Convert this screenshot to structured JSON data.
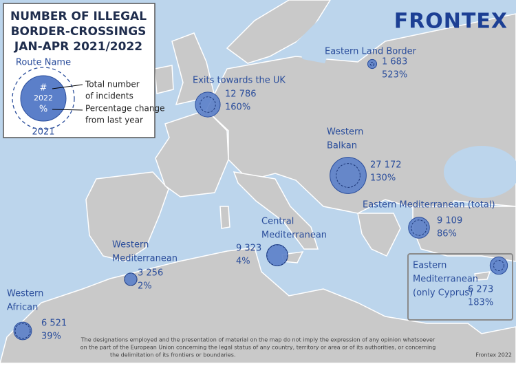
{
  "title": [
    "NUMBER OF ILLEGAL",
    "BORDER-CROSSINGS",
    "JAN-APR 2021/2022"
  ],
  "logo": "FRONTEX",
  "legend": {
    "route_name": "Route Name",
    "count_symbol": "#",
    "year_current": "2022",
    "change_symbol": "%",
    "year_previous": "2021",
    "count_text": [
      "Total number",
      "of incidents"
    ],
    "change_text": [
      "Percentage change",
      "from last year"
    ]
  },
  "routes": [
    {
      "name": [
        "Eastern Land Border"
      ],
      "value": 1683,
      "value_label": "1 683",
      "change": 523,
      "change_label": "523%"
    },
    {
      "name": [
        "Exits towards the UK"
      ],
      "value": 12786,
      "value_label": "12 786",
      "change": 160,
      "change_label": "160%"
    },
    {
      "name": [
        "Western",
        "Balkan"
      ],
      "value": 27172,
      "value_label": "27 172",
      "change": 130,
      "change_label": "130%"
    },
    {
      "name": [
        "Eastern Mediterranean (total)"
      ],
      "value": 9109,
      "value_label": "9 109",
      "change": 86,
      "change_label": "86%"
    },
    {
      "name": [
        "Central",
        "Mediterranean"
      ],
      "value": 9323,
      "value_label": "9 323",
      "change": 4,
      "change_label": "4%"
    },
    {
      "name": [
        "Western",
        "Mediterranean"
      ],
      "value": 3256,
      "value_label": "3 256",
      "change": 2,
      "change_label": "2%"
    },
    {
      "name": [
        "Western",
        "African"
      ],
      "value": 6521,
      "value_label": "6 521",
      "change": 39,
      "change_label": "39%"
    },
    {
      "name": [
        "Eastern",
        "Mediterranean",
        "(only Cyprus)"
      ],
      "value": 6273,
      "value_label": "6 273",
      "change": 183,
      "change_label": "183%"
    }
  ],
  "disclaimer": [
    "The designations employed and the presentation of material on the map do not imply the expression of any opinion whatsoever",
    "on the part of the European Union concerning the legal status of any country, territory or area or of its authorities, or concerning",
    "the delimitation of its frontiers or boundaries."
  ],
  "credit": "Frontex 2022"
}
